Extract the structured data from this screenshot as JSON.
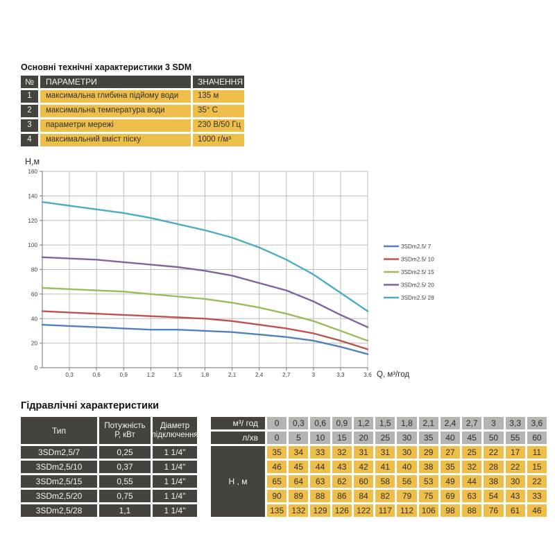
{
  "top_table": {
    "title": "Основні технічні характеристики 3 SDM",
    "headers": {
      "num": "№",
      "param": "ПАРАМЕТРИ",
      "value": "ЗНАЧЕННЯ"
    },
    "rows": [
      {
        "num": "1",
        "param": "максимальна глибина підйому води",
        "value": "135 м"
      },
      {
        "num": "2",
        "param": "максимальна температура води",
        "value": "35° С"
      },
      {
        "num": "3",
        "param": "параметри мережі",
        "value": "230 В/50 Гц"
      },
      {
        "num": "4",
        "param": "максимальний вміст піску",
        "value": "1000 г/м³"
      }
    ]
  },
  "chart_data": {
    "type": "line",
    "title": "",
    "xlabel": "Q,  м³/год",
    "ylabel": "Н,м",
    "xlim": [
      0,
      3.6
    ],
    "ylim": [
      0,
      160
    ],
    "grid": true,
    "legend_position": "right",
    "x": [
      0,
      0.3,
      0.6,
      0.9,
      1.2,
      1.5,
      1.8,
      2.1,
      2.4,
      2.7,
      3,
      3.3,
      3.6
    ],
    "x_tick_labels": [
      "0",
      "0,3",
      "0,6",
      "0,9",
      "1,2",
      "1,5",
      "1,8",
      "2,1",
      "2,4",
      "2,7",
      "3",
      "3,3",
      "3,6"
    ],
    "y_ticks": [
      0,
      20,
      40,
      60,
      80,
      100,
      120,
      140,
      160
    ],
    "series": [
      {
        "name": "3SDm2.5/ 7",
        "color": "#4F81BD",
        "values": [
          35,
          34,
          33,
          32,
          31,
          31,
          30,
          29,
          27,
          25,
          22,
          17,
          11
        ]
      },
      {
        "name": "3SDm2.5/ 10",
        "color": "#C0504D",
        "values": [
          46,
          45,
          44,
          43,
          42,
          41,
          40,
          38,
          35,
          32,
          28,
          22,
          15
        ]
      },
      {
        "name": "3SDm2.5/ 15",
        "color": "#9BBB59",
        "values": [
          65,
          64,
          63,
          62,
          60,
          58,
          56,
          53,
          49,
          44,
          38,
          30,
          22
        ]
      },
      {
        "name": "3SDm2.5/ 20",
        "color": "#8064A2",
        "values": [
          90,
          89,
          88,
          86,
          84,
          82,
          79,
          75,
          69,
          63,
          54,
          43,
          33
        ]
      },
      {
        "name": "3SDm2.5/ 28",
        "color": "#4BACC6",
        "values": [
          135,
          132,
          129,
          126,
          122,
          117,
          112,
          106,
          98,
          88,
          76,
          61,
          46
        ]
      }
    ]
  },
  "bottom_table": {
    "title": "Гідравлічні характеристики",
    "col_headers": {
      "type": "Тип",
      "power_l1": "Потужність",
      "power_l2": "Р, кВт",
      "diameter_l1": "Діаметр",
      "diameter_l2": "підключення",
      "flow_m3": "м³/ год",
      "flow_lmin": "л/хв",
      "head": "Н , м"
    },
    "flow_m3_values": [
      "0",
      "0,3",
      "0,6",
      "0,9",
      "1,2",
      "1,5",
      "1,8",
      "2,1",
      "2,4",
      "2,7",
      "3",
      "3,3",
      "3,6"
    ],
    "flow_lmin_values": [
      "0",
      "5",
      "10",
      "15",
      "20",
      "25",
      "30",
      "35",
      "40",
      "45",
      "50",
      "55",
      "60"
    ],
    "rows": [
      {
        "type": "3SDm2,5/7",
        "power": "0,25",
        "diameter": "1 1/4\"",
        "heads": [
          "35",
          "34",
          "33",
          "32",
          "31",
          "31",
          "30",
          "29",
          "27",
          "25",
          "22",
          "17",
          "11"
        ]
      },
      {
        "type": "3SDm2,5/10",
        "power": "0,37",
        "diameter": "1 1/4\"",
        "heads": [
          "46",
          "45",
          "44",
          "43",
          "42",
          "41",
          "40",
          "38",
          "35",
          "32",
          "28",
          "22",
          "15"
        ]
      },
      {
        "type": "3SDm2,5/15",
        "power": "0,55",
        "diameter": "1 1/4\"",
        "heads": [
          "65",
          "64",
          "63",
          "62",
          "60",
          "58",
          "56",
          "53",
          "49",
          "44",
          "38",
          "30",
          "22"
        ]
      },
      {
        "type": "3SDm2,5/20",
        "power": "0,75",
        "diameter": "1 1/4\"",
        "heads": [
          "90",
          "89",
          "88",
          "86",
          "84",
          "82",
          "79",
          "75",
          "69",
          "63",
          "54",
          "43",
          "33"
        ]
      },
      {
        "type": "3SDm2,5/28",
        "power": "1,1",
        "diameter": "1 1/4\"",
        "heads": [
          "135",
          "132",
          "129",
          "126",
          "122",
          "117",
          "112",
          "106",
          "98",
          "88",
          "76",
          "61",
          "46"
        ]
      }
    ]
  },
  "colors": {
    "dark_cell": "#46423d",
    "yellow_cell": "#edbe49",
    "gray_cell": "#b6b4b1",
    "axis": "#8a8a8a",
    "gridline": "#bcbcbc",
    "page_bg": "#ffffff"
  }
}
